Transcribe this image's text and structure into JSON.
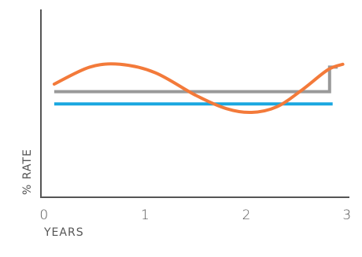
{
  "chart_data": {
    "type": "line",
    "xlabel": "YEARS",
    "ylabel": "% RATE",
    "x_ticks": [
      "0",
      "1",
      "2",
      "3"
    ],
    "xlim": [
      0,
      3
    ],
    "ylim": [
      0,
      1
    ],
    "grid": false,
    "series": [
      {
        "color": "#999999",
        "x": [
          0.1,
          1.5,
          2.82,
          2.82,
          2.9
        ],
        "y": [
          0.56,
          0.56,
          0.56,
          0.69,
          0.69
        ]
      },
      {
        "color": "#1aa7e0",
        "x": [
          0.1,
          2.85
        ],
        "y": [
          0.495,
          0.495
        ]
      },
      {
        "color": "#f37a3a",
        "x": [
          0.1,
          0.45,
          0.75,
          1.1,
          1.5,
          1.8,
          2.05,
          2.3,
          2.55,
          2.8,
          2.95
        ],
        "y": [
          0.6,
          0.69,
          0.705,
          0.66,
          0.54,
          0.47,
          0.45,
          0.48,
          0.57,
          0.675,
          0.705
        ]
      }
    ]
  }
}
